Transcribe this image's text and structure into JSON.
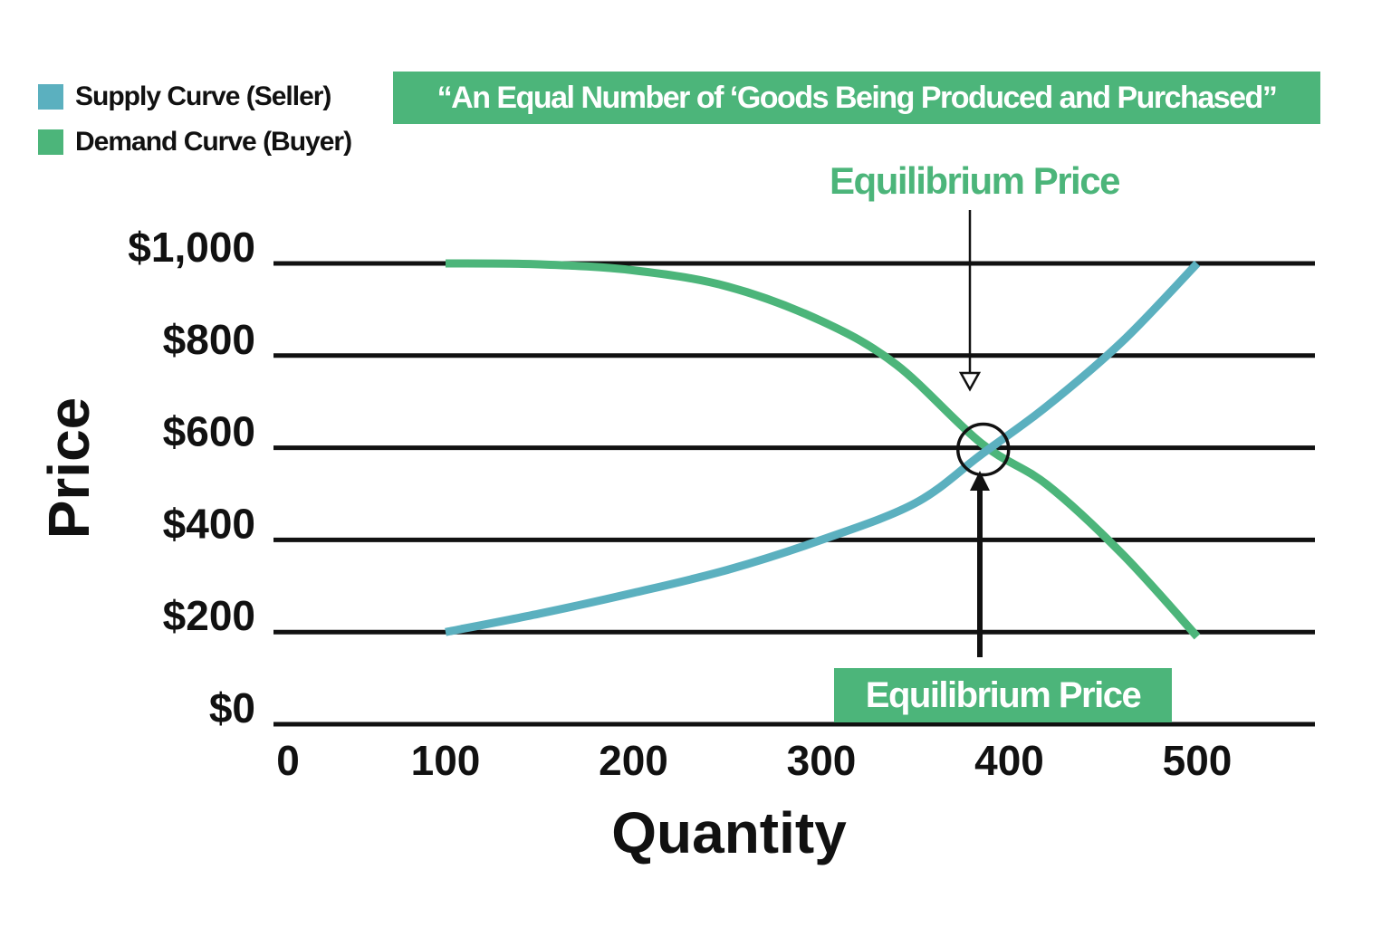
{
  "colors": {
    "supply": "#5bb0bf",
    "demand": "#4cb57a",
    "banner_bg": "#4cb57a",
    "accent_text": "#4cb57a",
    "axis": "#111111"
  },
  "legend": {
    "items": [
      {
        "label": "Supply Curve (Seller)",
        "color": "#5bb0bf"
      },
      {
        "label": "Demand Curve (Buyer)",
        "color": "#4cb57a"
      }
    ]
  },
  "banner": {
    "text": "“An Equal Number of ‘Goods Being Produced and Purchased”"
  },
  "annotations": {
    "top_label": "Equilibrium Price",
    "bottom_label": "Equilibrium Price"
  },
  "chart_data": {
    "type": "line",
    "title": "",
    "xlabel": "Quantity",
    "ylabel": "Price",
    "xlim": [
      0,
      550
    ],
    "ylim": [
      0,
      1000
    ],
    "x_ticks": [
      0,
      100,
      200,
      300,
      400,
      500
    ],
    "x_tick_labels": [
      "0",
      "100",
      "200",
      "300",
      "400",
      "500"
    ],
    "y_ticks": [
      0,
      200,
      400,
      600,
      800,
      1000
    ],
    "y_tick_labels": [
      "$0",
      "$200",
      "$400",
      "$600",
      "$800",
      "$1,000"
    ],
    "grid": "horizontal",
    "legend_position": "top-left",
    "series": [
      {
        "name": "Supply Curve (Seller)",
        "x": [
          100,
          150,
          200,
          250,
          300,
          350,
          385,
          420,
          460,
          500
        ],
        "y": [
          200,
          240,
          285,
          335,
          400,
          480,
          585,
          690,
          830,
          1000
        ]
      },
      {
        "name": "Demand Curve (Buyer)",
        "x": [
          100,
          150,
          200,
          250,
          300,
          340,
          385,
          420,
          460,
          500
        ],
        "y": [
          1000,
          998,
          985,
          950,
          875,
          780,
          610,
          520,
          370,
          190
        ]
      }
    ],
    "equilibrium": {
      "x": 390,
      "y": 610
    }
  }
}
